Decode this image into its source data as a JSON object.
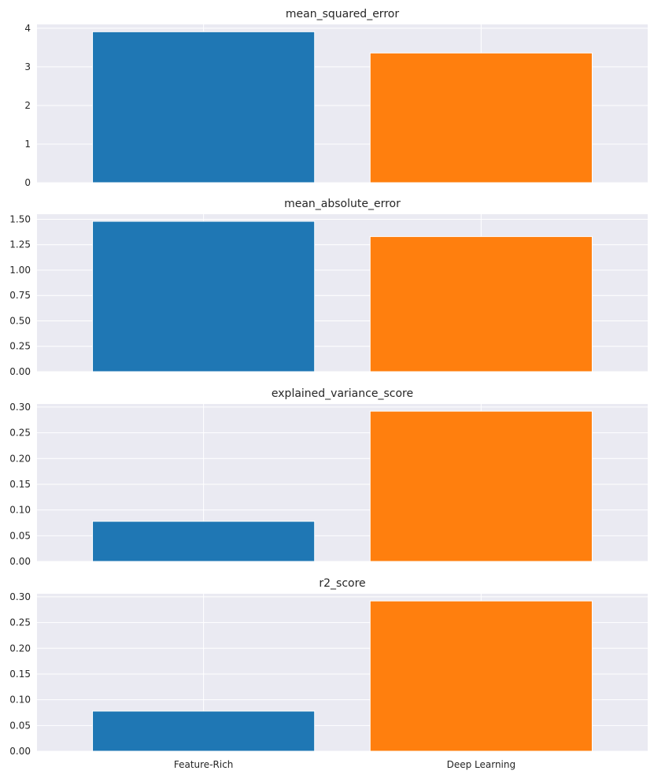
{
  "chart_data": [
    {
      "type": "bar",
      "title": "mean_squared_error",
      "categories": [
        "Feature-Rich",
        "Deep Learning"
      ],
      "values": [
        3.91,
        3.36
      ],
      "colors": [
        "#1f77b4",
        "#ff7f0e"
      ],
      "ylim": [
        0,
        4.1
      ],
      "yticks": [
        0,
        1,
        2,
        3,
        4
      ],
      "ytick_labels": [
        "0",
        "1",
        "2",
        "3",
        "4"
      ],
      "grid": true
    },
    {
      "type": "bar",
      "title": "mean_absolute_error",
      "categories": [
        "Feature-Rich",
        "Deep Learning"
      ],
      "values": [
        1.48,
        1.33
      ],
      "colors": [
        "#1f77b4",
        "#ff7f0e"
      ],
      "ylim": [
        0,
        1.55
      ],
      "yticks": [
        0,
        0.25,
        0.5,
        0.75,
        1.0,
        1.25,
        1.5
      ],
      "ytick_labels": [
        "0.00",
        "0.25",
        "0.50",
        "0.75",
        "1.00",
        "1.25",
        "1.50"
      ],
      "grid": true
    },
    {
      "type": "bar",
      "title": "explained_variance_score",
      "categories": [
        "Feature-Rich",
        "Deep Learning"
      ],
      "values": [
        0.078,
        0.292
      ],
      "colors": [
        "#1f77b4",
        "#ff7f0e"
      ],
      "ylim": [
        0,
        0.306
      ],
      "yticks": [
        0,
        0.05,
        0.1,
        0.15,
        0.2,
        0.25,
        0.3
      ],
      "ytick_labels": [
        "0.00",
        "0.05",
        "0.10",
        "0.15",
        "0.20",
        "0.25",
        "0.30"
      ],
      "grid": true
    },
    {
      "type": "bar",
      "title": "r2_score",
      "categories": [
        "Feature-Rich",
        "Deep Learning"
      ],
      "values": [
        0.078,
        0.292
      ],
      "colors": [
        "#1f77b4",
        "#ff7f0e"
      ],
      "ylim": [
        0,
        0.306
      ],
      "yticks": [
        0,
        0.05,
        0.1,
        0.15,
        0.2,
        0.25,
        0.3
      ],
      "ytick_labels": [
        "0.00",
        "0.05",
        "0.10",
        "0.15",
        "0.20",
        "0.25",
        "0.30"
      ],
      "xtick_labels": [
        "Feature-Rich",
        "Deep Learning"
      ],
      "grid": true
    }
  ]
}
